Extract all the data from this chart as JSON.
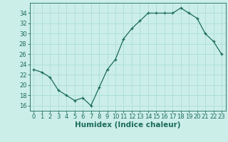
{
  "x": [
    0,
    1,
    2,
    3,
    4,
    5,
    6,
    7,
    8,
    9,
    10,
    11,
    12,
    13,
    14,
    15,
    16,
    17,
    18,
    19,
    20,
    21,
    22,
    23
  ],
  "y": [
    23,
    22.5,
    21.5,
    19,
    18,
    17,
    17.5,
    16,
    19.5,
    23,
    25,
    29,
    31,
    32.5,
    34,
    34,
    34,
    34,
    35,
    34,
    33,
    30,
    28.5,
    26
  ],
  "line_color": "#1a6b5a",
  "marker": "+",
  "bg_color": "#cceee8",
  "grid_color": "#aaddda",
  "xlabel": "Humidex (Indice chaleur)",
  "xlabel_fontsize": 7.5,
  "tick_fontsize": 6,
  "ylim": [
    15,
    36
  ],
  "yticks": [
    16,
    18,
    20,
    22,
    24,
    26,
    28,
    30,
    32,
    34
  ],
  "xlim": [
    -0.5,
    23.5
  ],
  "xticks": [
    0,
    1,
    2,
    3,
    4,
    5,
    6,
    7,
    8,
    9,
    10,
    11,
    12,
    13,
    14,
    15,
    16,
    17,
    18,
    19,
    20,
    21,
    22,
    23
  ]
}
